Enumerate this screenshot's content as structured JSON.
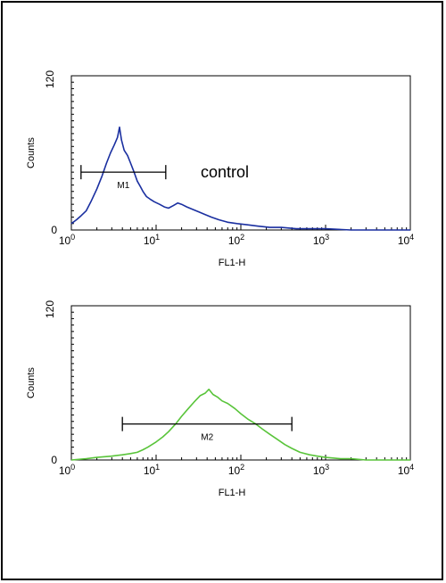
{
  "chart_data": [
    {
      "type": "line",
      "title": "",
      "xlabel": "FL1-H",
      "ylabel": "Counts",
      "xscale": "log",
      "xlim": [
        1,
        10000
      ],
      "ylim": [
        0,
        120
      ],
      "yticks": [
        "0",
        "120"
      ],
      "xticks": [
        {
          "base": "10",
          "exp": "0"
        },
        {
          "base": "10",
          "exp": "1"
        },
        {
          "base": "10",
          "exp": "2"
        },
        {
          "base": "10",
          "exp": "3"
        },
        {
          "base": "10",
          "exp": "4"
        }
      ],
      "annotation": "control",
      "marker": {
        "label": "M1",
        "x_start": 1.3,
        "x_end": 13
      },
      "marker_y": 45,
      "series": [
        {
          "color": "#1a2fa0",
          "x": [
            1.0,
            1.15,
            1.3,
            1.5,
            1.7,
            2.0,
            2.3,
            2.6,
            2.9,
            3.2,
            3.5,
            3.7,
            3.9,
            4.2,
            4.6,
            5.0,
            5.5,
            6.0,
            6.5,
            7.0,
            7.7,
            8.5,
            9.5,
            11,
            12.5,
            14,
            16,
            18,
            20,
            23,
            27,
            32,
            38,
            45,
            55,
            70,
            90,
            120,
            160,
            220,
            300,
            450,
            700,
            1000,
            2000,
            4000,
            10000
          ],
          "y": [
            5,
            8,
            11,
            15,
            22,
            32,
            42,
            52,
            60,
            66,
            72,
            80,
            70,
            62,
            58,
            52,
            45,
            38,
            34,
            30,
            26,
            24,
            22,
            20,
            18,
            17,
            19,
            21,
            20,
            18,
            16,
            14,
            12,
            10,
            8,
            6,
            5,
            4,
            3,
            2,
            2,
            1,
            1,
            1,
            0,
            0,
            0
          ]
        }
      ]
    },
    {
      "type": "line",
      "title": "",
      "xlabel": "FL1-H",
      "ylabel": "Counts",
      "xscale": "log",
      "xlim": [
        1,
        10000
      ],
      "ylim": [
        0,
        120
      ],
      "yticks": [
        "0",
        "120"
      ],
      "xticks": [
        {
          "base": "10",
          "exp": "0"
        },
        {
          "base": "10",
          "exp": "1"
        },
        {
          "base": "10",
          "exp": "2"
        },
        {
          "base": "10",
          "exp": "3"
        },
        {
          "base": "10",
          "exp": "4"
        }
      ],
      "annotation": "",
      "marker": {
        "label": "M2",
        "x_start": 4,
        "x_end": 400
      },
      "marker_y": 28,
      "series": [
        {
          "color": "#59c43a",
          "x": [
            1.0,
            1.5,
            2.0,
            3.0,
            4.0,
            5.0,
            6.0,
            7.0,
            8.0,
            10,
            12,
            14,
            17,
            20,
            24,
            28,
            33,
            38,
            42,
            47,
            53,
            60,
            70,
            85,
            100,
            120,
            150,
            180,
            220,
            270,
            330,
            400,
            500,
            650,
            800,
            1000,
            1500,
            2000,
            3000,
            5000,
            10000
          ],
          "y": [
            0,
            1,
            2,
            3,
            4,
            5,
            6,
            8,
            10,
            14,
            18,
            22,
            28,
            34,
            40,
            45,
            50,
            52,
            55,
            51,
            49,
            46,
            44,
            40,
            36,
            32,
            28,
            24,
            20,
            16,
            12,
            9,
            6,
            4,
            3,
            2,
            1,
            1,
            0,
            0,
            0
          ]
        }
      ]
    }
  ]
}
